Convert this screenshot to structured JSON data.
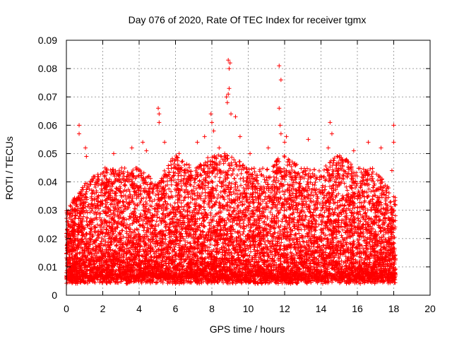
{
  "chart_data": {
    "type": "scatter",
    "title": "Day 076 of 2020, Rate Of TEC Index for receiver tgmx",
    "xlabel": "GPS time / hours",
    "ylabel": "ROTI / TECUs",
    "xlim": [
      0,
      20
    ],
    "ylim": [
      0,
      0.09
    ],
    "xticks": [
      0,
      2,
      4,
      6,
      8,
      10,
      12,
      14,
      16,
      18,
      20
    ],
    "yticks": [
      0,
      0.01,
      0.02,
      0.03,
      0.04,
      0.05,
      0.06,
      0.07,
      0.08,
      0.09
    ],
    "ytick_labels": [
      "0",
      "0.01",
      "0.02",
      "0.03",
      "0.04",
      "0.05",
      "0.06",
      "0.07",
      "0.08",
      "0.09"
    ],
    "grid": true,
    "marker": "+",
    "color": "#ff0000",
    "series": [
      {
        "name": "ROTI",
        "data_range": {
          "x_min": 0,
          "x_max": 18.1,
          "n_points": 9000
        },
        "envelope_hours": [
          0,
          1,
          2,
          3,
          4,
          5,
          6,
          7,
          8,
          9,
          10,
          11,
          12,
          13,
          14,
          15,
          16,
          17,
          18
        ],
        "envelope_typical_max": [
          0.03,
          0.04,
          0.045,
          0.045,
          0.045,
          0.04,
          0.05,
          0.045,
          0.05,
          0.05,
          0.045,
          0.045,
          0.05,
          0.045,
          0.045,
          0.05,
          0.045,
          0.045,
          0.035
        ],
        "points": [
          [
            0.7,
            0.06
          ],
          [
            0.7,
            0.057
          ],
          [
            1.05,
            0.052
          ],
          [
            1.1,
            0.049
          ],
          [
            2.6,
            0.05
          ],
          [
            3.6,
            0.052
          ],
          [
            4.2,
            0.054
          ],
          [
            4.4,
            0.051
          ],
          [
            5.05,
            0.066
          ],
          [
            5.1,
            0.064
          ],
          [
            5.1,
            0.061
          ],
          [
            5.4,
            0.054
          ],
          [
            6.2,
            0.05
          ],
          [
            7.2,
            0.054
          ],
          [
            7.6,
            0.056
          ],
          [
            7.95,
            0.064
          ],
          [
            8.0,
            0.061
          ],
          [
            8.1,
            0.058
          ],
          [
            8.4,
            0.052
          ],
          [
            8.9,
            0.083
          ],
          [
            8.95,
            0.08
          ],
          [
            9.0,
            0.082
          ],
          [
            8.95,
            0.073
          ],
          [
            8.9,
            0.071
          ],
          [
            8.85,
            0.068
          ],
          [
            8.8,
            0.07
          ],
          [
            9.3,
            0.063
          ],
          [
            9.05,
            0.064
          ],
          [
            9.55,
            0.056
          ],
          [
            10.1,
            0.05
          ],
          [
            11.1,
            0.052
          ],
          [
            11.7,
            0.081
          ],
          [
            11.8,
            0.076
          ],
          [
            11.7,
            0.066
          ],
          [
            11.75,
            0.06
          ],
          [
            11.8,
            0.057
          ],
          [
            12.1,
            0.056
          ],
          [
            12.0,
            0.054
          ],
          [
            13.3,
            0.055
          ],
          [
            14.5,
            0.061
          ],
          [
            14.6,
            0.057
          ],
          [
            14.4,
            0.052
          ],
          [
            15.8,
            0.051
          ],
          [
            16.6,
            0.054
          ],
          [
            17.3,
            0.052
          ],
          [
            18.0,
            0.06
          ],
          [
            18.0,
            0.054
          ],
          [
            17.9,
            0.044
          ],
          [
            0.1,
            0.026
          ],
          [
            0.2,
            0.024
          ]
        ]
      }
    ]
  }
}
